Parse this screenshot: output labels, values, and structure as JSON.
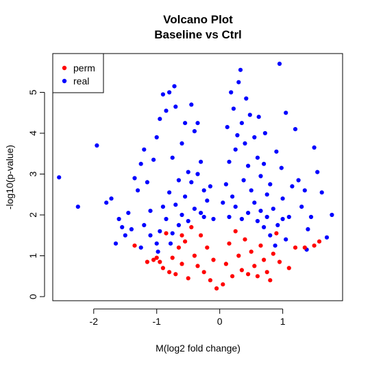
{
  "chart_data": {
    "type": "scatter",
    "title": "Volcano Plot",
    "subtitle": "Baseline vs Ctrl",
    "xlabel": "M(log2 fold change)",
    "ylabel": "-log10(p-value)",
    "xlim": [
      -2.65,
      1.95
    ],
    "ylim": [
      -0.1,
      5.95
    ],
    "xticks": [
      -2,
      -1,
      0,
      1
    ],
    "yticks": [
      0,
      1,
      2,
      3,
      4,
      5
    ],
    "grid": false,
    "legend_position": "top-left",
    "series": [
      {
        "name": "perm",
        "color": "#ff0000",
        "points": [
          [
            -1.35,
            1.25
          ],
          [
            -1.05,
            0.9
          ],
          [
            -1.0,
            0.95
          ],
          [
            -0.95,
            0.85
          ],
          [
            -0.9,
            0.7
          ],
          [
            -1.15,
            0.85
          ],
          [
            -0.85,
            1.55
          ],
          [
            -0.8,
            0.6
          ],
          [
            -0.7,
            0.55
          ],
          [
            -0.75,
            0.95
          ],
          [
            -0.65,
            1.2
          ],
          [
            -0.6,
            0.8
          ],
          [
            -0.55,
            1.35
          ],
          [
            -0.5,
            0.45
          ],
          [
            -0.45,
            1.7
          ],
          [
            -0.4,
            1.0
          ],
          [
            -0.35,
            0.75
          ],
          [
            -0.3,
            1.5
          ],
          [
            -0.25,
            0.6
          ],
          [
            -0.2,
            1.2
          ],
          [
            -0.15,
            0.4
          ],
          [
            -0.1,
            0.9
          ],
          [
            -0.05,
            0.2
          ],
          [
            0.05,
            0.3
          ],
          [
            0.1,
            0.8
          ],
          [
            0.15,
            1.3
          ],
          [
            0.2,
            0.5
          ],
          [
            0.25,
            1.6
          ],
          [
            0.3,
            1.0
          ],
          [
            0.35,
            0.65
          ],
          [
            0.4,
            1.4
          ],
          [
            0.45,
            0.55
          ],
          [
            0.5,
            1.1
          ],
          [
            0.55,
            0.75
          ],
          [
            0.6,
            0.5
          ],
          [
            0.65,
            1.25
          ],
          [
            0.7,
            0.9
          ],
          [
            0.75,
            0.6
          ],
          [
            0.8,
            0.4
          ],
          [
            0.85,
            1.05
          ],
          [
            0.9,
            1.55
          ],
          [
            0.95,
            0.85
          ],
          [
            1.1,
            0.7
          ],
          [
            1.2,
            1.2
          ],
          [
            1.35,
            1.2
          ],
          [
            1.5,
            1.25
          ],
          [
            1.58,
            1.35
          ],
          [
            -0.6,
            1.5
          ]
        ]
      },
      {
        "name": "real",
        "color": "#0000ff",
        "points": [
          [
            -2.55,
            2.92
          ],
          [
            -2.25,
            2.2
          ],
          [
            -1.95,
            3.7
          ],
          [
            -1.8,
            2.3
          ],
          [
            -1.72,
            2.4
          ],
          [
            -1.65,
            1.3
          ],
          [
            -1.6,
            1.9
          ],
          [
            -1.55,
            1.7
          ],
          [
            -1.5,
            1.5
          ],
          [
            -1.45,
            2.05
          ],
          [
            -1.35,
            2.9
          ],
          [
            -1.3,
            2.6
          ],
          [
            -1.25,
            3.25
          ],
          [
            -1.2,
            3.6
          ],
          [
            -1.15,
            2.8
          ],
          [
            -1.1,
            2.1
          ],
          [
            -1.05,
            3.35
          ],
          [
            -1.0,
            3.9
          ],
          [
            -0.95,
            4.35
          ],
          [
            -0.9,
            4.95
          ],
          [
            -0.85,
            4.55
          ],
          [
            -0.8,
            5.0
          ],
          [
            -0.75,
            3.4
          ],
          [
            -0.72,
            5.15
          ],
          [
            -0.7,
            4.65
          ],
          [
            -0.65,
            2.85
          ],
          [
            -0.6,
            3.75
          ],
          [
            -0.55,
            4.25
          ],
          [
            -0.5,
            3.05
          ],
          [
            -0.45,
            4.7
          ],
          [
            -0.4,
            4.05
          ],
          [
            -0.35,
            4.25
          ],
          [
            -0.3,
            3.3
          ],
          [
            -0.25,
            2.6
          ],
          [
            -0.2,
            2.35
          ],
          [
            -0.15,
            2.7
          ],
          [
            -0.1,
            1.9
          ],
          [
            -1.0,
            1.3
          ],
          [
            -0.95,
            1.6
          ],
          [
            -0.9,
            2.2
          ],
          [
            -0.85,
            1.9
          ],
          [
            -0.8,
            2.55
          ],
          [
            -0.75,
            1.55
          ],
          [
            -0.7,
            2.25
          ],
          [
            -0.65,
            1.75
          ],
          [
            -0.6,
            2.0
          ],
          [
            -0.55,
            2.45
          ],
          [
            -0.5,
            1.85
          ],
          [
            -0.45,
            2.8
          ],
          [
            -0.4,
            2.15
          ],
          [
            -0.35,
            3.0
          ],
          [
            -0.3,
            2.05
          ],
          [
            -0.25,
            1.95
          ],
          [
            0.05,
            2.3
          ],
          [
            0.1,
            2.75
          ],
          [
            0.12,
            4.15
          ],
          [
            0.15,
            3.3
          ],
          [
            0.18,
            5.0
          ],
          [
            0.2,
            2.45
          ],
          [
            0.22,
            4.6
          ],
          [
            0.25,
            3.6
          ],
          [
            0.28,
            3.95
          ],
          [
            0.3,
            5.25
          ],
          [
            0.33,
            5.55
          ],
          [
            0.35,
            4.25
          ],
          [
            0.38,
            2.85
          ],
          [
            0.4,
            3.75
          ],
          [
            0.42,
            4.85
          ],
          [
            0.45,
            3.2
          ],
          [
            0.48,
            4.45
          ],
          [
            0.5,
            2.6
          ],
          [
            0.55,
            3.9
          ],
          [
            0.6,
            3.4
          ],
          [
            0.62,
            4.4
          ],
          [
            0.65,
            2.95
          ],
          [
            0.7,
            3.25
          ],
          [
            0.72,
            4.0
          ],
          [
            0.75,
            2.5
          ],
          [
            0.8,
            2.75
          ],
          [
            0.85,
            2.15
          ],
          [
            0.9,
            3.55
          ],
          [
            0.95,
            5.7
          ],
          [
            0.98,
            3.15
          ],
          [
            1.0,
            2.4
          ],
          [
            1.05,
            4.5
          ],
          [
            1.1,
            1.95
          ],
          [
            1.15,
            2.7
          ],
          [
            1.2,
            4.1
          ],
          [
            1.25,
            2.85
          ],
          [
            1.3,
            2.2
          ],
          [
            1.35,
            2.6
          ],
          [
            1.4,
            1.65
          ],
          [
            1.45,
            1.95
          ],
          [
            1.5,
            3.65
          ],
          [
            1.55,
            3.05
          ],
          [
            1.62,
            2.55
          ],
          [
            1.7,
            1.45
          ],
          [
            1.78,
            2.0
          ],
          [
            1.38,
            1.15
          ],
          [
            0.88,
            1.25
          ],
          [
            0.92,
            1.75
          ],
          [
            0.6,
            1.85
          ],
          [
            0.65,
            2.1
          ],
          [
            0.7,
            1.7
          ],
          [
            0.75,
            1.95
          ],
          [
            0.8,
            1.5
          ],
          [
            0.55,
            2.3
          ],
          [
            0.45,
            2.05
          ],
          [
            0.35,
            1.9
          ],
          [
            0.25,
            2.2
          ],
          [
            0.15,
            1.95
          ],
          [
            1.05,
            1.4
          ],
          [
            1.0,
            1.9
          ],
          [
            -1.1,
            1.5
          ],
          [
            -1.2,
            1.75
          ],
          [
            -1.4,
            1.65
          ],
          [
            -1.25,
            1.2
          ],
          [
            -0.98,
            1.1
          ],
          [
            -0.78,
            1.3
          ]
        ]
      }
    ]
  }
}
